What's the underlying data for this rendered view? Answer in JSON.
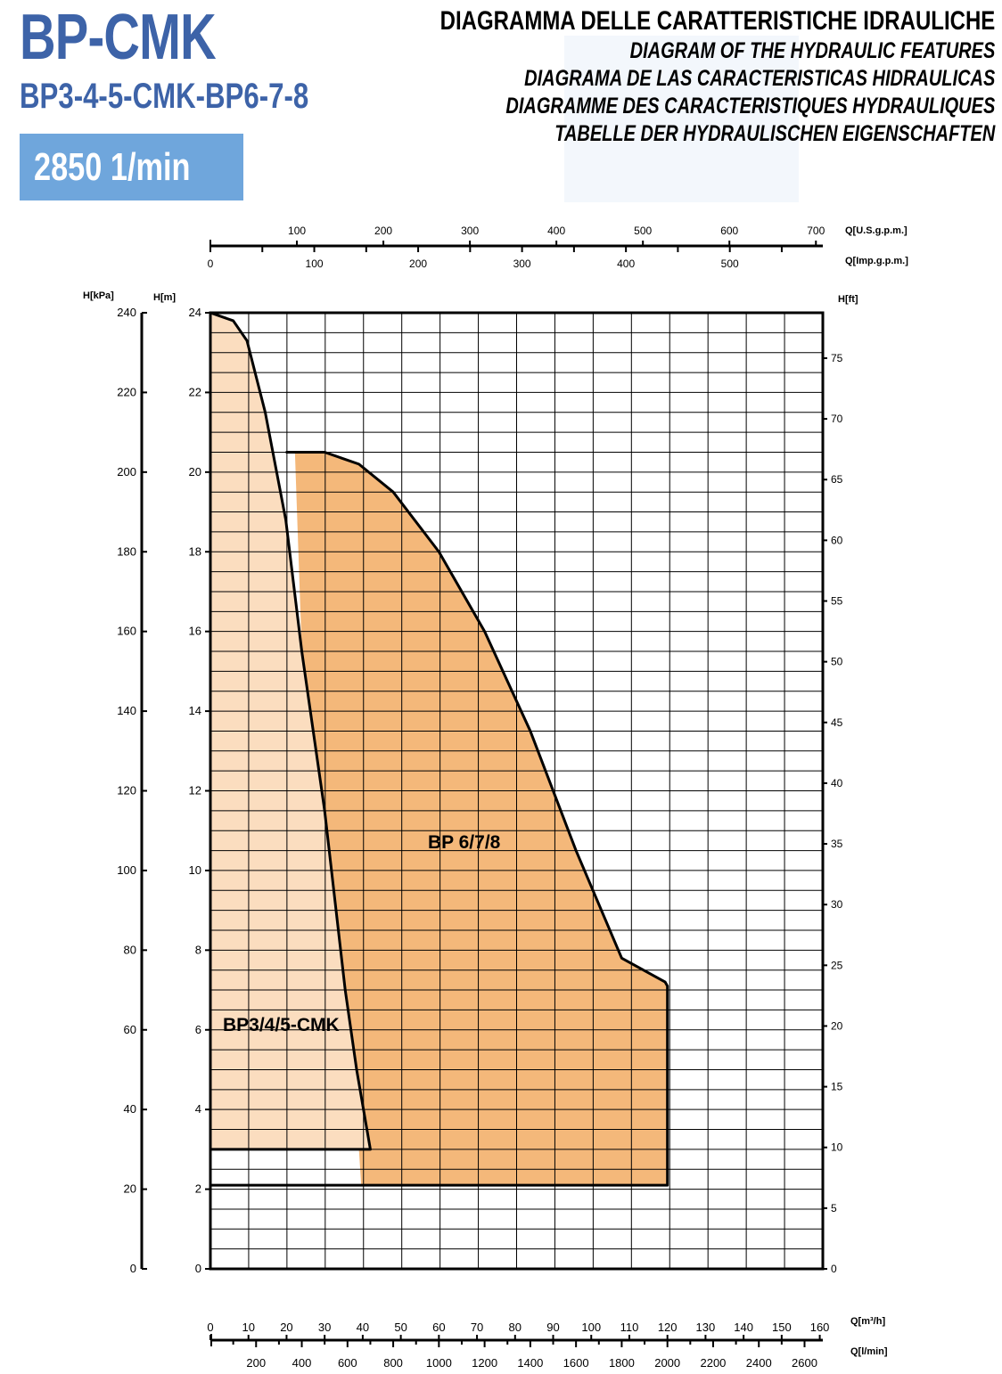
{
  "header": {
    "product": "BP-CMK",
    "models": "BP3-4-5-CMK-BP6-7-8",
    "speed": "2850 1/min",
    "title_lines": [
      "DIAGRAMMA DELLE CARATTERISTICHE IDRAULICHE",
      "DIAGRAM OF THE HYDRAULIC FEATURES",
      "DIAGRAMA DE LAS CARACTERISTICAS HIDRAULICAS",
      "DIAGRAMME DES CARACTERISTIQUES HYDRAULIQUES",
      "TABELLE DER HYDRAULISCHEN EIGENSCHAFTEN"
    ]
  },
  "colors": {
    "title_blue": "#3d63a8",
    "badge_blue": "#6fa6dc",
    "area_light": "#fbddbf",
    "area_dark": "#f4b87a"
  },
  "chart_data": {
    "type": "area",
    "grid": true,
    "x_axis_bottom": {
      "label": "Q[l/min]",
      "range": [
        0,
        2680
      ],
      "ticks": [
        200,
        400,
        600,
        800,
        1000,
        1200,
        1400,
        1600,
        1800,
        2000,
        2200,
        2400,
        2600
      ],
      "tick_labels": [
        "200",
        "400",
        "600",
        "800",
        "1000",
        "1200",
        "1400",
        "1600",
        "1800",
        "2000",
        "2200",
        "2400",
        "2600"
      ]
    },
    "x_axis_m3h": {
      "label": "Q[m³/h]",
      "ticks": [
        0,
        10,
        20,
        30,
        40,
        50,
        60,
        70,
        80,
        90,
        100,
        110,
        120,
        130,
        140,
        150,
        160
      ],
      "tick_labels": [
        "0",
        "10",
        "20",
        "30",
        "40",
        "50",
        "60",
        "70",
        "80",
        "90",
        "100",
        "110",
        "120",
        "130",
        "140",
        "150",
        "160"
      ]
    },
    "x_axis_usgpm": {
      "label": "Q[U.S.g.p.m.]",
      "ticks": [
        100,
        200,
        300,
        400,
        500,
        600,
        700
      ],
      "tick_labels": [
        "100",
        "200",
        "300",
        "400",
        "500",
        "600",
        "700"
      ]
    },
    "x_axis_impgpm": {
      "label": "Q[Imp.g.p.m.]",
      "ticks": [
        0,
        100,
        200,
        300,
        400,
        500
      ],
      "tick_labels": [
        "0",
        "100",
        "200",
        "300",
        "400",
        "500"
      ]
    },
    "y_axis_m": {
      "label": "H[m]",
      "range": [
        0,
        24
      ],
      "ticks": [
        0,
        2,
        4,
        6,
        8,
        10,
        12,
        14,
        16,
        18,
        20,
        22,
        24
      ],
      "tick_labels": [
        "0",
        "2",
        "4",
        "6",
        "8",
        "10",
        "12",
        "14",
        "16",
        "18",
        "20",
        "22",
        "24"
      ]
    },
    "y_axis_kpa": {
      "label": "H[kPa]",
      "ticks": [
        0,
        20,
        40,
        60,
        80,
        100,
        120,
        140,
        160,
        180,
        200,
        220,
        240
      ],
      "tick_labels": [
        "0",
        "20",
        "40",
        "60",
        "80",
        "100",
        "120",
        "140",
        "160",
        "180",
        "200",
        "220",
        "240"
      ]
    },
    "y_axis_ft": {
      "label": "H[ft]",
      "ticks": [
        0,
        5,
        10,
        15,
        20,
        25,
        30,
        35,
        40,
        45,
        50,
        55,
        60,
        65,
        70,
        75
      ],
      "tick_labels": [
        "0",
        "5",
        "10",
        "15",
        "20",
        "25",
        "30",
        "35",
        "40",
        "45",
        "50",
        "55",
        "60",
        "65",
        "70",
        "75"
      ]
    },
    "series": [
      {
        "name": "BP3/4/5-CMK",
        "color": "#fbddbf",
        "baseline_h": 3.0,
        "boundary": [
          [
            0,
            24.0
          ],
          [
            100,
            23.8
          ],
          [
            160,
            23.3
          ],
          [
            240,
            21.5
          ],
          [
            330,
            18.8
          ],
          [
            400,
            15.5
          ],
          [
            500,
            11.5
          ],
          [
            590,
            7.0
          ],
          [
            640,
            5.0
          ],
          [
            700,
            3.0
          ]
        ]
      },
      {
        "name": "BP 6/7/8",
        "color": "#f4b87a",
        "baseline_h": 2.1,
        "boundary": [
          [
            370,
            20.5
          ],
          [
            500,
            20.5
          ],
          [
            650,
            20.2
          ],
          [
            800,
            19.5
          ],
          [
            1000,
            18.0
          ],
          [
            1200,
            16.0
          ],
          [
            1400,
            13.5
          ],
          [
            1600,
            10.5
          ],
          [
            1800,
            7.8
          ],
          [
            1990,
            7.2
          ],
          [
            2000,
            7.1
          ]
        ],
        "left_edge": [
          [
            400,
            15.5
          ],
          [
            450,
            13.5
          ],
          [
            500,
            11.5
          ],
          [
            550,
            9.0
          ],
          [
            590,
            7.0
          ],
          [
            620,
            5.5
          ],
          [
            650,
            3.0
          ],
          [
            660,
            2.1
          ]
        ]
      }
    ]
  }
}
